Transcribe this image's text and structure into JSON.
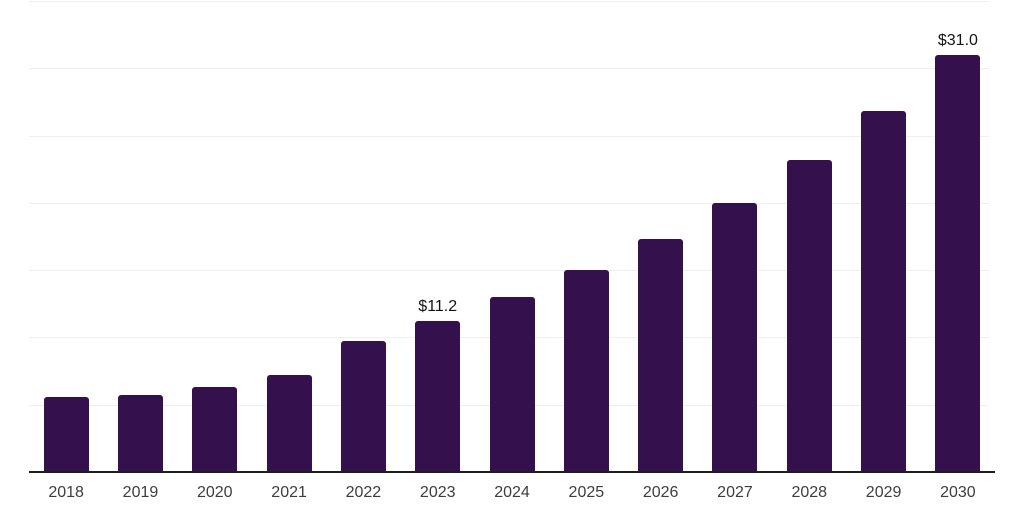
{
  "colors": {
    "background": "#ffffff",
    "bar": "#34104C",
    "axis": "#1f1f1f",
    "gridline": "#efefef",
    "tick_label": "#3d3d3d",
    "value_label": "#141414"
  },
  "chart_data": {
    "type": "bar",
    "title": "",
    "xlabel": "",
    "ylabel": "",
    "categories": [
      "2018",
      "2019",
      "2020",
      "2021",
      "2022",
      "2023",
      "2024",
      "2025",
      "2026",
      "2027",
      "2028",
      "2029",
      "2030"
    ],
    "values": [
      5.6,
      5.7,
      6.3,
      7.2,
      9.7,
      11.2,
      13.0,
      15.0,
      17.3,
      20.0,
      23.2,
      26.8,
      31.0
    ],
    "value_labels": {
      "2023": "$11.2",
      "2030": "$31.0"
    },
    "ylim": [
      0,
      35
    ],
    "grid_step": 5,
    "grid": true,
    "y_tick_labels_shown": false,
    "legend": false
  }
}
